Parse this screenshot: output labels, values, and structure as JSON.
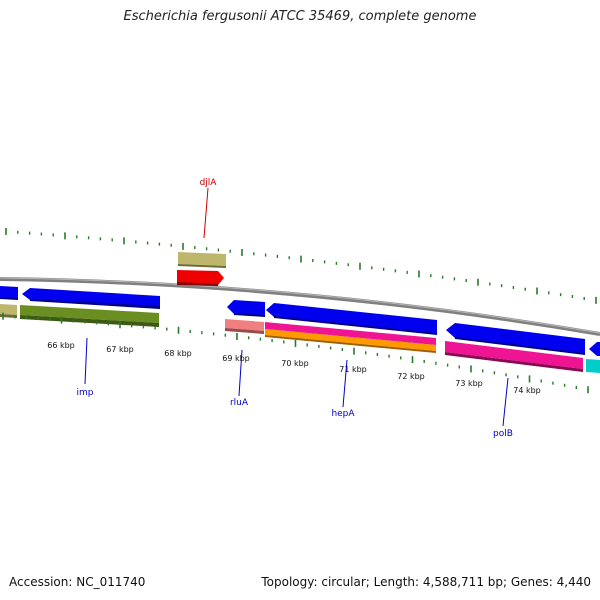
{
  "title": "Escherichia fergusonii ATCC 35469, complete genome",
  "footer": {
    "accession": "Accession: NC_011740",
    "topology": "Topology: circular; Length: 4,588,711 bp; Genes: 4,440"
  },
  "ruler": {
    "labels": [
      "66 kbp",
      "67 kbp",
      "68 kbp",
      "69 kbp",
      "70 kbp",
      "71 kbp",
      "72 kbp",
      "73 kbp",
      "74 kbp"
    ]
  },
  "gene_labels": [
    {
      "name": "djlA",
      "color": "#cc0000"
    },
    {
      "name": "imp",
      "color": "#0000cc"
    },
    {
      "name": "rluA",
      "color": "#0000cc"
    },
    {
      "name": "hepA",
      "color": "#0000cc"
    },
    {
      "name": "polB",
      "color": "#0000cc"
    }
  ],
  "colors": {
    "backbone": "#808080",
    "tick": "#2a7a2a",
    "cds": "#0000ee",
    "gene_olive": "#6b8e23",
    "gene_khaki": "#bdb76b",
    "gene_red": "#ee0000",
    "gene_pink": "#ee1493",
    "gene_orange": "#ff9900",
    "gene_salmon": "#f08080",
    "gene_cyan": "#00cccc"
  }
}
